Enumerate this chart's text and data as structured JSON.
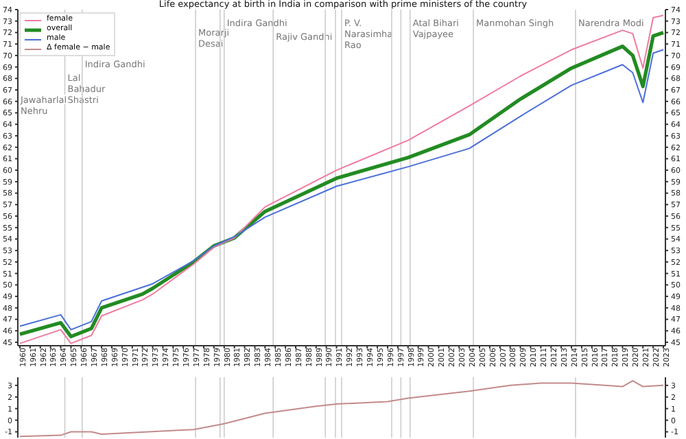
{
  "chart_data": [
    {
      "type": "line",
      "title": "Life expectancy at birth in India in comparison with prime ministers of the country",
      "series": [
        {
          "name": "female",
          "color": "#f07aa0",
          "x": [
            1960,
            1964,
            1965,
            1967,
            1968,
            1972,
            1973,
            1977,
            1979,
            1981,
            1984,
            1991,
            1998,
            2004,
            2009,
            2014,
            2019,
            2020,
            2021,
            2022,
            2023
          ],
          "values": [
            44.9,
            46.1,
            44.9,
            45.6,
            47.3,
            48.7,
            49.2,
            51.8,
            53.3,
            54.1,
            56.8,
            60.0,
            62.6,
            65.6,
            68.2,
            70.5,
            72.2,
            71.9,
            68.9,
            73.3,
            73.5
          ]
        },
        {
          "name": "overall",
          "color": "#228b22",
          "x": [
            1960,
            1964,
            1965,
            1967,
            1968,
            1972,
            1973,
            1977,
            1979,
            1981,
            1984,
            1991,
            1998,
            2004,
            2009,
            2014,
            2019,
            2020,
            2021,
            2022,
            2023
          ],
          "values": [
            45.7,
            46.7,
            45.5,
            46.2,
            48.0,
            49.2,
            49.7,
            52.0,
            53.4,
            54.1,
            56.4,
            59.3,
            61.1,
            63.1,
            66.2,
            68.9,
            70.8,
            70.0,
            67.3,
            71.7,
            72.0
          ]
        },
        {
          "name": "male",
          "color": "#4a6fd8",
          "x": [
            1960,
            1964,
            1965,
            1967,
            1968,
            1972,
            1973,
            1977,
            1979,
            1981,
            1984,
            1991,
            1998,
            2004,
            2009,
            2014,
            2019,
            2020,
            2021,
            2022,
            2023
          ],
          "values": [
            46.4,
            47.4,
            46.1,
            46.8,
            48.6,
            49.8,
            50.1,
            52.1,
            53.4,
            54.2,
            55.9,
            58.6,
            60.3,
            61.9,
            64.7,
            67.4,
            69.2,
            68.5,
            65.9,
            70.2,
            70.5
          ]
        }
      ],
      "xlim": [
        1959.8,
        2023.2
      ],
      "xticks": [
        1960,
        1961,
        1962,
        1963,
        1964,
        1965,
        1966,
        1967,
        1968,
        1969,
        1970,
        1971,
        1972,
        1973,
        1974,
        1975,
        1976,
        1977,
        1978,
        1979,
        1980,
        1981,
        1982,
        1983,
        1984,
        1985,
        1986,
        1987,
        1988,
        1989,
        1990,
        1991,
        1992,
        1993,
        1994,
        1995,
        1996,
        1997,
        1998,
        1999,
        2000,
        2001,
        2002,
        2003,
        2004,
        2005,
        2006,
        2007,
        2008,
        2009,
        2010,
        2011,
        2012,
        2013,
        2014,
        2015,
        2016,
        2017,
        2018,
        2019,
        2020,
        2021,
        2022,
        2023
      ],
      "ylim": [
        44.7,
        74
      ],
      "yticks": [
        45,
        46,
        47,
        48,
        49,
        50,
        51,
        52,
        53,
        54,
        55,
        56,
        57,
        58,
        59,
        60,
        61,
        62,
        63,
        64,
        65,
        66,
        67,
        68,
        69,
        70,
        71,
        72,
        73,
        74
      ],
      "y2lim": [
        44.7,
        74
      ],
      "y2ticks": [
        45,
        46,
        47,
        48,
        49,
        50,
        51,
        52,
        53,
        54,
        55,
        56,
        57,
        58,
        59,
        60,
        61,
        62,
        63,
        64,
        65,
        66,
        67,
        68,
        69,
        70,
        71,
        72,
        73,
        74
      ],
      "ref_lines": [
        {
          "axis": "x",
          "value": 1964.4,
          "label": "Lal\nBahadur\nShastri"
        },
        {
          "axis": "x",
          "value": 1966.1,
          "label": "Indira Gandhi"
        },
        {
          "axis": "x",
          "value": 1977.2,
          "label": "Morarji\nDesai"
        },
        {
          "axis": "x",
          "value": 1979.6,
          "label": null
        },
        {
          "axis": "x",
          "value": 1980.0,
          "label": "Indira Gandhi"
        },
        {
          "axis": "x",
          "value": 1984.8,
          "label": "Rajiv Gandhi"
        },
        {
          "axis": "x",
          "value": 1989.9,
          "label": null
        },
        {
          "axis": "x",
          "value": 1990.9,
          "label": null
        },
        {
          "axis": "x",
          "value": 1991.5,
          "label": "P. V.\nNarasimha\nRao"
        },
        {
          "axis": "x",
          "value": 1996.4,
          "label": null
        },
        {
          "axis": "x",
          "value": 1997.3,
          "label": null
        },
        {
          "axis": "x",
          "value": 1998.2,
          "label": "Atal Bihari\nVajpayee"
        },
        {
          "axis": "x",
          "value": 2004.4,
          "label": "Manmohan Singh"
        },
        {
          "axis": "x",
          "value": 2014.4,
          "label": "Narendra Modi"
        }
      ],
      "annotations": [
        "Jawaharlal\nNehru"
      ],
      "legend": "top left",
      "marker": "none"
    },
    {
      "type": "line",
      "series": [
        {
          "name": "Δ female − male",
          "color": "#c48a8a",
          "x": [
            1960,
            1964,
            1965,
            1967,
            1968,
            1977,
            1980,
            1984,
            1989,
            1991,
            1996,
            1998,
            2004,
            2008,
            2011,
            2014,
            2019,
            2020,
            2021,
            2023
          ],
          "values": [
            -1.4,
            -1.3,
            -1.0,
            -1.0,
            -1.2,
            -0.8,
            -0.3,
            0.6,
            1.2,
            1.4,
            1.6,
            1.9,
            2.5,
            3.0,
            3.2,
            3.2,
            2.9,
            3.4,
            2.9,
            3.0
          ]
        }
      ],
      "xlim": [
        1959.8,
        2023.2
      ],
      "ylim": [
        -1.5,
        3.7
      ],
      "yticks": [
        -1,
        0,
        1,
        2,
        3
      ],
      "y2lim": [
        -1.5,
        3.7
      ],
      "y2ticks": [
        -1,
        0,
        1,
        2,
        3
      ],
      "tick_labels": "y",
      "ref_lines": [
        {
          "axis": "x",
          "value": 1964.4,
          "label": null
        },
        {
          "axis": "x",
          "value": 1966.1,
          "label": null
        },
        {
          "axis": "x",
          "value": 1977.2,
          "label": null
        },
        {
          "axis": "x",
          "value": 1979.6,
          "label": null
        },
        {
          "axis": "x",
          "value": 1980.0,
          "label": null
        },
        {
          "axis": "x",
          "value": 1984.8,
          "label": null
        },
        {
          "axis": "x",
          "value": 1989.9,
          "label": null
        },
        {
          "axis": "x",
          "value": 1990.9,
          "label": null
        },
        {
          "axis": "x",
          "value": 1991.5,
          "label": null
        },
        {
          "axis": "x",
          "value": 1996.4,
          "label": null
        },
        {
          "axis": "x",
          "value": 1997.3,
          "label": null
        },
        {
          "axis": "x",
          "value": 1998.2,
          "label": null
        },
        {
          "axis": "x",
          "value": 2004.4,
          "label": null
        },
        {
          "axis": "x",
          "value": 2014.4,
          "label": null
        }
      ],
      "marker": "none"
    }
  ]
}
